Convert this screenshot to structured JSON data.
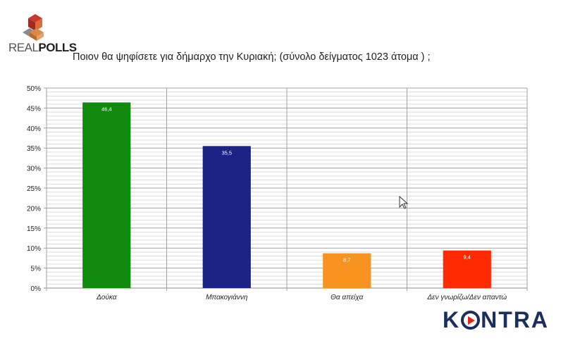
{
  "brand": {
    "left_logo_text_light": "REAL",
    "left_logo_text_bold": "POLLS",
    "left_logo_tagline": "",
    "right_logo_text_before": "K",
    "right_logo_text_after": "NTRA",
    "colors": {
      "realpolls_red": "#b5302a",
      "realpolls_orange": "#d9823a",
      "kontra_navy": "#1b2f5e",
      "kontra_red": "#e4231b"
    }
  },
  "header": {
    "title": "Ποιον θα ψηφίσετε για δήμαρχο την Κυριακή; (σύνολο δείγματος 1023 άτομα ) ;"
  },
  "chart_data": {
    "type": "bar",
    "categories": [
      "Δούκα",
      "Μπακογιάννη",
      "Θα απείχα",
      "Δεν γνωρίζω/Δεν απαντώ"
    ],
    "values": [
      46.4,
      35.5,
      8.7,
      9.4
    ],
    "value_labels": [
      "46,4",
      "35,5",
      "8,7",
      "9,4"
    ],
    "colors": [
      "#0f8a0f",
      "#1c2286",
      "#f7931e",
      "#ff2a00"
    ],
    "yticks": [
      "0%",
      "5%",
      "10%",
      "15%",
      "20%",
      "25%",
      "30%",
      "35%",
      "40%",
      "45%",
      "50%"
    ],
    "ylim": [
      0,
      50
    ],
    "grid": true,
    "legend": "none"
  }
}
